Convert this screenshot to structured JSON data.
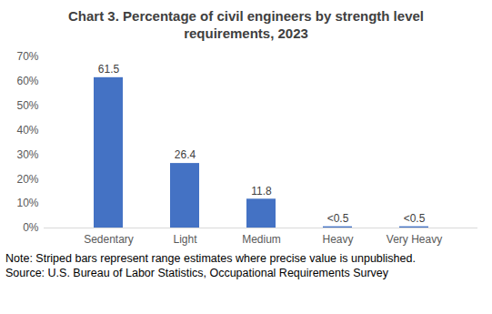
{
  "chart_data": {
    "type": "bar",
    "title": "Chart 3. Percentage of civil engineers by strength level requirements, 2023",
    "categories": [
      "Sedentary",
      "Light",
      "Medium",
      "Heavy",
      "Very Heavy"
    ],
    "values": [
      61.5,
      26.4,
      11.8,
      0.5,
      0.5
    ],
    "value_labels": [
      "61.5",
      "26.4",
      "11.8",
      "<0.5",
      "<0.5"
    ],
    "color": "#4472c4",
    "ylim": [
      0,
      70
    ],
    "yticks": [
      {
        "value": 0,
        "label": "0%"
      },
      {
        "value": 10,
        "label": "10%"
      },
      {
        "value": 20,
        "label": "20%"
      },
      {
        "value": 30,
        "label": "30%"
      },
      {
        "value": 40,
        "label": "40%"
      },
      {
        "value": 50,
        "label": "50%"
      },
      {
        "value": 60,
        "label": "60%"
      },
      {
        "value": 70,
        "label": "70%"
      }
    ],
    "grid": false,
    "data_labels": true,
    "notes": [
      "Note: Striped bars represent range estimates where precise value is unpublished.",
      "Source: U.S. Bureau of Labor Statistics, Occupational Requirements Survey"
    ]
  }
}
